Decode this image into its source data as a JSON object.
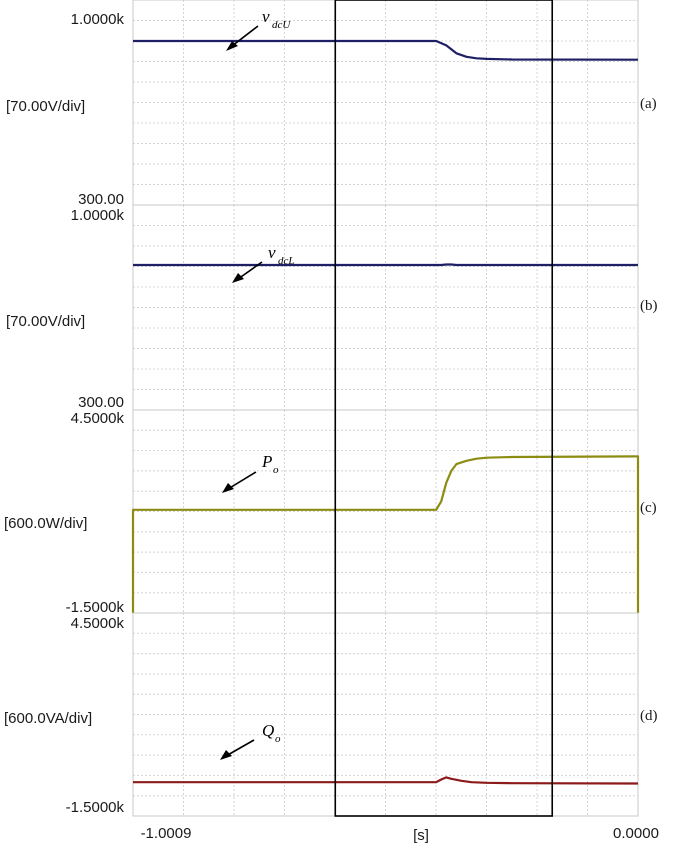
{
  "chart_data": [
    {
      "type": "line",
      "panel_tag": "(a)",
      "ytick_top": "1.0000k",
      "ytick_bottom": "300.00",
      "scale_label": "[70.00V/div]",
      "annotation": {
        "main": "v",
        "sub": "dcU"
      },
      "ylim": [
        300,
        1000
      ],
      "color": "#1f1f66",
      "series": [
        {
          "x": [
            -1.0009,
            -0.4,
            -0.38,
            -0.36,
            -0.34,
            -0.32,
            -0.3,
            -0.25,
            0.0
          ],
          "y": [
            860,
            860,
            845,
            818,
            806,
            801,
            799,
            797,
            796
          ]
        }
      ]
    },
    {
      "type": "line",
      "panel_tag": "(b)",
      "ytick_top": "1.0000k",
      "ytick_bottom": "300.00",
      "scale_label": "[70.00V/div]",
      "annotation": {
        "main": "v",
        "sub": "dcL"
      },
      "ylim": [
        300,
        1000
      ],
      "color": "#1f1f66",
      "series": [
        {
          "x": [
            -1.0009,
            -0.39,
            -0.38,
            -0.37,
            -0.36,
            0.0
          ],
          "y": [
            795,
            795,
            797,
            797,
            795,
            795
          ]
        }
      ]
    },
    {
      "type": "line",
      "panel_tag": "(c)",
      "ytick_top": "4.5000k",
      "ytick_bottom": "-1.5000k",
      "scale_label": "[600.0W/div]",
      "annotation": {
        "main": "P",
        "sub": "o"
      },
      "ylim": [
        -1500,
        4500
      ],
      "color": "#8c8c12",
      "series": [
        {
          "x": [
            -1.0009,
            -0.4,
            -0.39,
            -0.38,
            -0.37,
            -0.36,
            -0.34,
            -0.32,
            -0.3,
            -0.25,
            0.0
          ],
          "y": [
            1550,
            1550,
            1800,
            2350,
            2700,
            2900,
            3000,
            3060,
            3090,
            3110,
            3130
          ]
        }
      ]
    },
    {
      "type": "line",
      "panel_tag": "(d)",
      "ytick_top": "4.5000k",
      "ytick_bottom": "-1.5000k",
      "scale_label": "[600.0VA/div]",
      "annotation": {
        "main": "Q",
        "sub": "o"
      },
      "ylim": [
        -1500,
        4500
      ],
      "color": "#8b1a1a",
      "series": [
        {
          "x": [
            -1.0009,
            -0.4,
            -0.39,
            -0.38,
            -0.37,
            -0.35,
            -0.33,
            -0.3,
            -0.25,
            0.0
          ],
          "y": [
            -500,
            -500,
            -420,
            -360,
            -400,
            -460,
            -500,
            -520,
            -530,
            -540
          ]
        }
      ]
    }
  ],
  "xaxis": {
    "min_label": "-1.0009",
    "unit_label": "[s]",
    "max_label": "0.0000",
    "xlim": [
      -1.0009,
      0.0
    ]
  },
  "highlight_window": [
    -0.6,
    -0.17
  ]
}
